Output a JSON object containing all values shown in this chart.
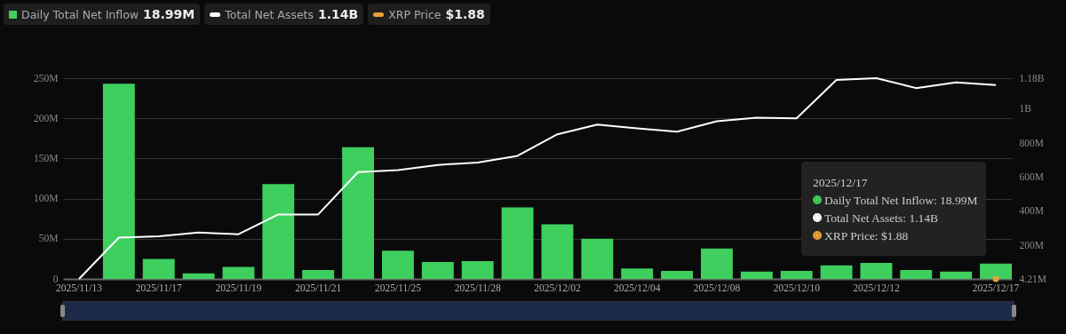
{
  "chart_data": {
    "type": "bar",
    "categories": [
      "2025/11/13",
      null,
      "2025/11/17",
      null,
      "2025/11/19",
      null,
      "2025/11/21",
      null,
      "2025/11/25",
      null,
      "2025/11/28",
      null,
      "2025/12/02",
      null,
      "2025/12/04",
      null,
      "2025/12/08",
      null,
      "2025/12/10",
      null,
      "2025/12/12",
      null,
      null,
      "2025/12/17"
    ],
    "series": [
      {
        "name": "Daily Total Net Inflow",
        "color": "#3ecf5e",
        "values": [
          null,
          243000000,
          25000000,
          7000000,
          15000000,
          118000000,
          11000000,
          164000000,
          35000000,
          21000000,
          22000000,
          89000000,
          68000000,
          50000000,
          13000000,
          10000000,
          38000000,
          9000000,
          10000000,
          17000000,
          20000000,
          11000000,
          9000000,
          18990000
        ]
      },
      {
        "name": "Total Net Assets",
        "type": "line",
        "axis": "y2",
        "color": "#ffffff",
        "values": [
          4210000,
          246000000,
          254000000,
          276000000,
          266000000,
          382000000,
          382000000,
          630000000,
          642000000,
          672000000,
          686000000,
          725000000,
          851000000,
          908000000,
          886000000,
          866000000,
          928000000,
          949000000,
          945000000,
          1170000000,
          1180000000,
          1122000000,
          1155000000,
          1140000000
        ]
      },
      {
        "name": "XRP Price",
        "type": "scatter",
        "color": "#e8a13a",
        "values": [
          null,
          null,
          null,
          null,
          null,
          null,
          null,
          null,
          null,
          null,
          null,
          null,
          null,
          null,
          null,
          null,
          null,
          null,
          null,
          null,
          null,
          null,
          null,
          1.88
        ]
      }
    ],
    "ylim": [
      0,
      250000000
    ],
    "yticks": [
      {
        "value": 0,
        "label": "0"
      },
      {
        "value": 50000000,
        "label": "50M"
      },
      {
        "value": 100000000,
        "label": "100M"
      },
      {
        "value": 150000000,
        "label": "150M"
      },
      {
        "value": 200000000,
        "label": "200M"
      },
      {
        "value": 250000000,
        "label": "250M"
      }
    ],
    "y2lim": [
      4210000,
      1180000000
    ],
    "y2ticks": [
      {
        "value": 4210000,
        "label": "4.21M"
      },
      {
        "value": 200000000,
        "label": "200M"
      },
      {
        "value": 400000000,
        "label": "400M"
      },
      {
        "value": 600000000,
        "label": "600M"
      },
      {
        "value": 800000000,
        "label": "800M"
      },
      {
        "value": 1000000000,
        "label": "1B"
      },
      {
        "value": 1180000000,
        "label": "1.18B"
      }
    ],
    "grid": "y",
    "legend": "top left",
    "annotations": [
      "18.99M",
      "1.14B",
      "$1.88",
      "2025/12/17",
      "Daily Total Net Inflow: 18.99M",
      "Total Net Assets: 1.14B",
      "XRP Price: $1.88"
    ]
  }
}
